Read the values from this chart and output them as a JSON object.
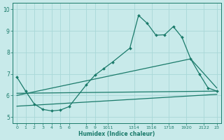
{
  "bg_color": "#c8eaea",
  "grid_color": "#a8d8d8",
  "line_color": "#1a7a6a",
  "xlabel": "Humidex (Indice chaleur)",
  "ylim": [
    4.7,
    10.3
  ],
  "xlim": [
    -0.5,
    23.5
  ],
  "yticks": [
    5,
    6,
    7,
    8,
    9,
    10
  ],
  "ytick_labels": [
    "5",
    "6",
    "7",
    "8",
    "9",
    "10"
  ],
  "xtick_positions": [
    0,
    1,
    2,
    3,
    4,
    5,
    6,
    8,
    9,
    10.5,
    13.5,
    15.5,
    17.5,
    19.5,
    21.5,
    23
  ],
  "xtick_labels": [
    "0",
    "1",
    "2",
    "3",
    "4",
    "5",
    "6",
    "8",
    "9",
    "1011",
    "1314",
    "1516",
    "1718",
    "1920",
    "2122",
    "23"
  ],
  "line1_x": [
    0,
    1,
    2,
    3,
    4,
    5,
    6,
    8,
    9,
    10,
    11,
    13,
    14,
    15,
    16,
    17,
    18,
    19,
    20,
    21,
    22,
    23
  ],
  "line1_y": [
    6.85,
    6.2,
    5.6,
    5.35,
    5.28,
    5.32,
    5.48,
    6.5,
    6.95,
    7.25,
    7.55,
    8.2,
    9.72,
    9.35,
    8.8,
    8.82,
    9.2,
    8.7,
    7.7,
    7.0,
    6.35,
    6.2
  ],
  "line2_x": [
    0,
    23
  ],
  "line2_y": [
    6.1,
    6.2
  ],
  "line3_x": [
    0,
    20,
    23
  ],
  "line3_y": [
    6.0,
    7.7,
    6.35
  ],
  "line4_x": [
    0,
    23
  ],
  "line4_y": [
    5.5,
    6.05
  ]
}
